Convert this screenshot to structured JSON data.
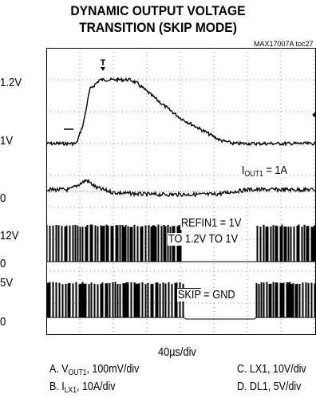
{
  "title_line1": "DYNAMIC OUTPUT VOLTAGE",
  "title_line2": "TRANSITION (SKIP MODE)",
  "figure_id": "MAX17007A toc27",
  "trigger_marker": "T",
  "chart_data": {
    "type": "line",
    "title": "DYNAMIC OUTPUT VOLTAGE TRANSITION (SKIP MODE)",
    "y_tick_labels": [
      "1.2V",
      "1V",
      "0",
      "12V",
      "0",
      "5V",
      "0"
    ],
    "xlabel": "40µs/div",
    "grid": true,
    "annotations": {
      "iout": "IOUT1 = 1A",
      "refin_line1": "REFIN1 = 1V",
      "refin_line2": "TO 1.2V TO 1V",
      "skip": "SKIP = GND"
    },
    "legend": [
      {
        "id": "A",
        "text": "A. VOUT1, 100mV/div"
      },
      {
        "id": "B",
        "text": "B. ILX1, 10A/div"
      },
      {
        "id": "C",
        "text": "C. LX1, 10V/div"
      },
      {
        "id": "D",
        "text": "D. DL1, 5V/div"
      }
    ],
    "series": [
      {
        "name": "A",
        "x": [
          0,
          0.6,
          0.9,
          1.1,
          1.3,
          1.6,
          2.0,
          2.5,
          2.7,
          3.5,
          4.0,
          5.2,
          5.6,
          6.0,
          7.5,
          8.0
        ],
        "y": [
          1.0,
          1.0,
          1.0,
          1.06,
          1.17,
          1.2,
          1.2,
          1.2,
          1.19,
          1.12,
          1.08,
          1.01,
          1.0,
          1.0,
          1.0,
          1.0
        ]
      },
      {
        "name": "B",
        "x": [
          0,
          0.7,
          1.0,
          1.2,
          1.5,
          2.0,
          3.0,
          5.0,
          6.0,
          8.0
        ],
        "y": [
          0.6,
          0.6,
          1.2,
          1.6,
          0.8,
          0.3,
          0.1,
          0.1,
          0.6,
          0.6
        ]
      }
    ]
  },
  "labels": {
    "ytick_1": "1.2V",
    "ytick_2": "1V",
    "ytick_3": "0",
    "ytick_4": "12V",
    "ytick_5": "0",
    "ytick_6": "5V",
    "ytick_7": "0",
    "iout_main": "I",
    "iout_sub": "OUT1",
    "iout_rest": " = 1A",
    "refin_line1": "REFIN1 = 1V",
    "refin_line2": "TO 1.2V TO 1V",
    "skip_over": "SKIP",
    "skip_rest": " = GND",
    "timebase": "40µs/div",
    "legA_pre": "A. V",
    "legA_sub": "OUT1",
    "legA_post": ", 100mV/div",
    "legB_pre": "B. I",
    "legB_sub": "LX1",
    "legB_post": ", 10A/div",
    "legC": "C. LX1, 10V/div",
    "legD": "D. DL1, 5V/div"
  }
}
